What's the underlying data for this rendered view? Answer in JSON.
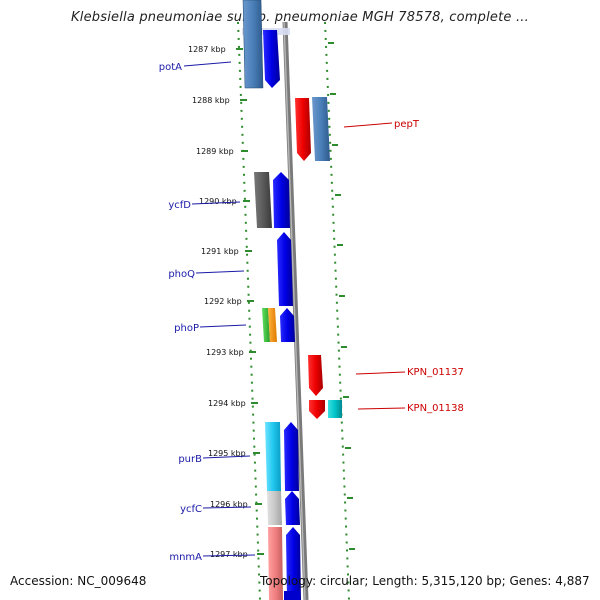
{
  "header": {
    "title": "Klebsiella pneumoniae subsp. pneumoniae MGH 78578, complete ..."
  },
  "footer": {
    "accession": "Accession: NC_009648",
    "summary": "Topology: circular; Length: 5,315,120 bp; Genes: 4,887"
  },
  "map": {
    "scale_labels": [
      "1287 kbp",
      "1288 kbp",
      "1289 kbp",
      "1290 kbp",
      "1291 kbp",
      "1292 kbp",
      "1293 kbp",
      "1294 kbp",
      "1295 kbp",
      "1296 kbp",
      "1297 kbp"
    ],
    "left_gene_labels": [
      "potA",
      "ycfD",
      "phoQ",
      "phoP",
      "purB",
      "ycfC",
      "mnmA"
    ],
    "right_gene_labels": [
      "pepT",
      "KPN_01137",
      "KPN_01138"
    ]
  },
  "colors": {
    "ruler": "#2e8b2e",
    "left_label": "#1a1aa8",
    "right_label": "#cc0000",
    "backbone": "#8c8c8c"
  }
}
